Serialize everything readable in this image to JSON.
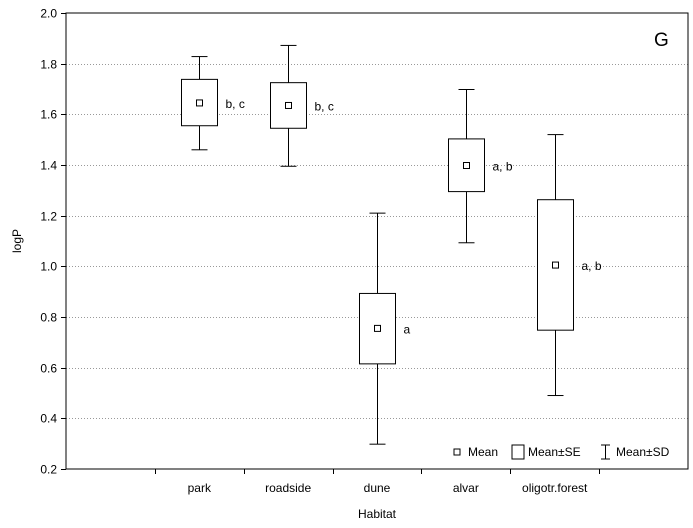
{
  "chart_data": {
    "type": "box",
    "title": "",
    "panel_label": "G",
    "xlabel": "Habitat",
    "ylabel": "logP",
    "ylim": [
      0.2,
      2.0
    ],
    "yticks": [
      "0.2",
      "0.4",
      "0.6",
      "0.8",
      "1.0",
      "1.2",
      "1.4",
      "1.6",
      "1.8",
      "2.0"
    ],
    "grid": "horizontal-dotted",
    "categories": [
      "park",
      "roadside",
      "dune",
      "alvar",
      "oligotr.forest"
    ],
    "series": [
      {
        "mean": [
          1.645,
          1.635,
          0.755,
          1.398,
          1.005
        ],
        "se_low": [
          1.555,
          1.545,
          0.615,
          1.295,
          0.748
        ],
        "se_high": [
          1.738,
          1.725,
          0.893,
          1.503,
          1.263
        ],
        "sd_low": [
          1.46,
          1.395,
          0.298,
          1.093,
          0.49
        ],
        "sd_high": [
          1.828,
          1.872,
          1.21,
          1.698,
          1.52
        ],
        "significance": [
          "b, c",
          "b, c",
          "a",
          "a, b",
          "a, b"
        ]
      }
    ],
    "legend": {
      "position": "bottom-right",
      "items": [
        "Mean",
        "Mean±SE",
        "Mean±SD"
      ]
    }
  }
}
